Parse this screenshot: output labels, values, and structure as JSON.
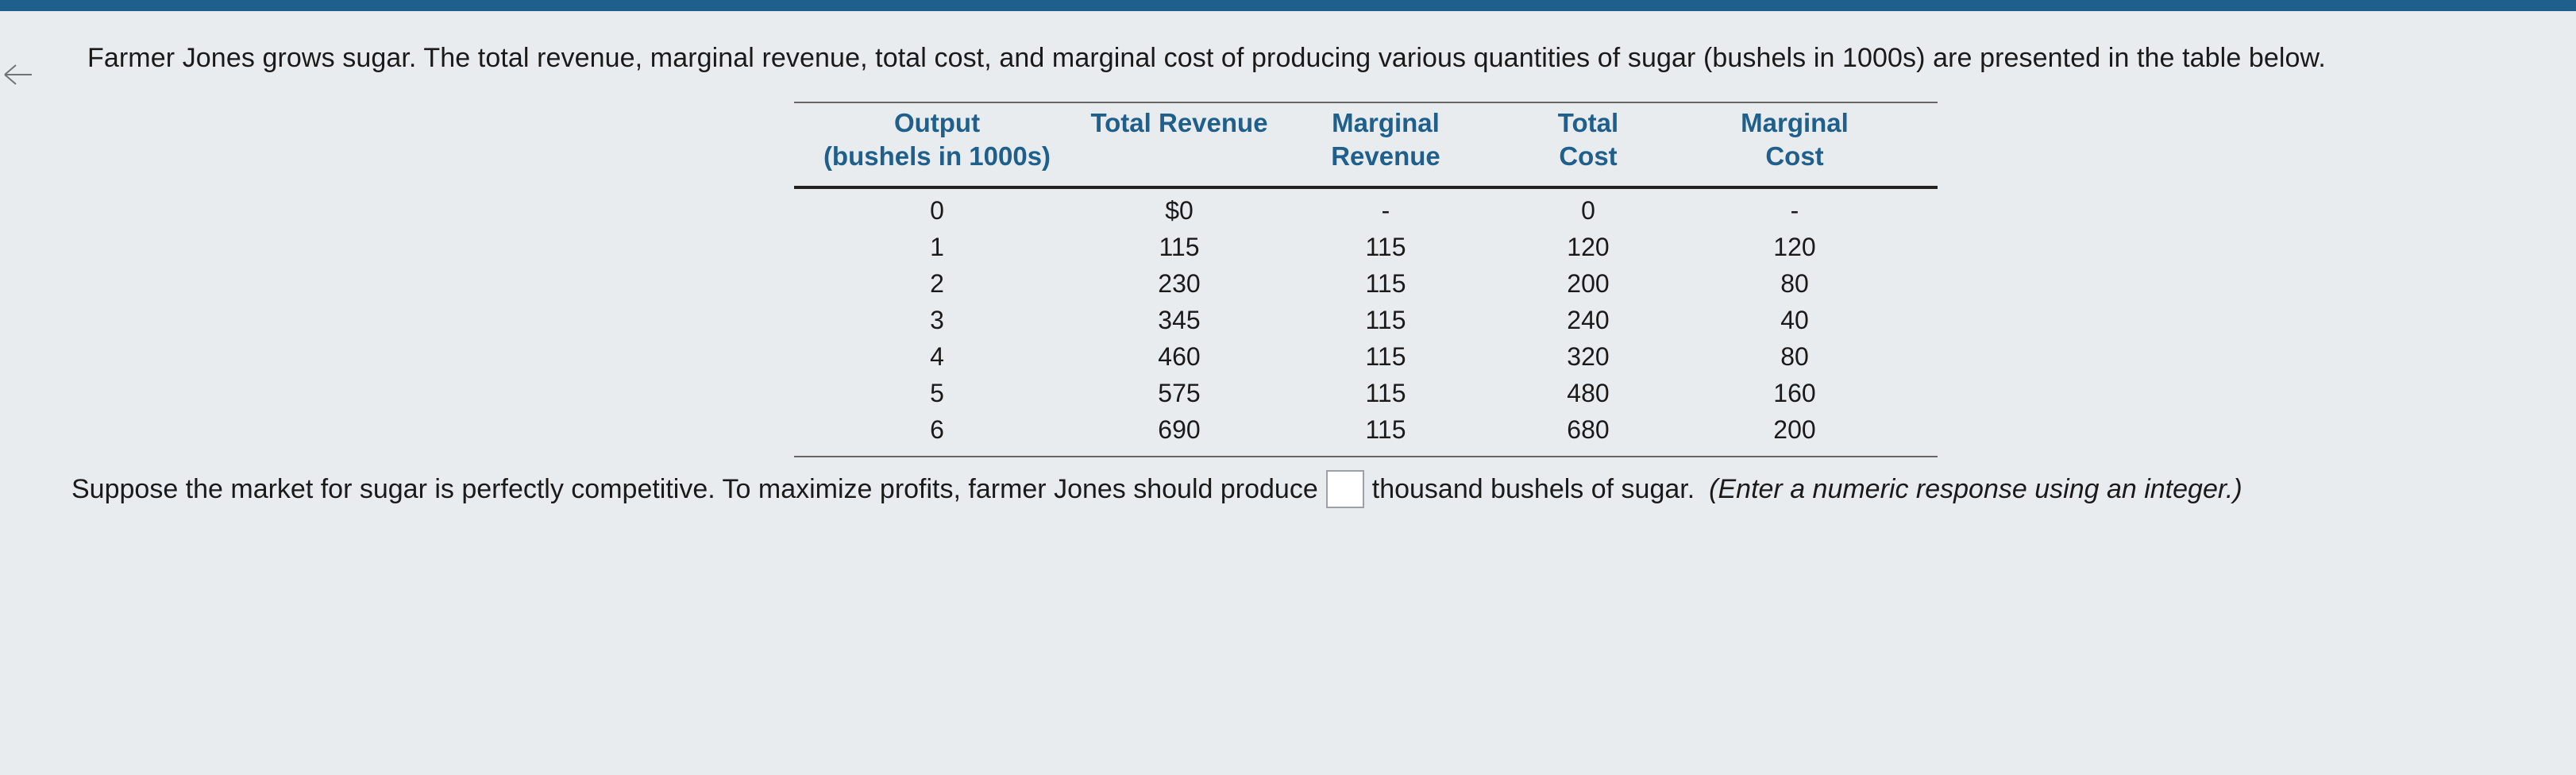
{
  "question": {
    "prompt": "Farmer Jones grows sugar. The total revenue, marginal revenue, total cost, and marginal cost of producing various quantities of sugar (bushels in 1000s) are presented in the table below.",
    "followup_before": "Suppose the market for sugar is perfectly competitive. To maximize profits, farmer Jones should produce",
    "followup_after": "thousand bushels of sugar.",
    "hint": "(Enter a numeric response using an integer.)",
    "answer_value": ""
  },
  "table": {
    "headers": [
      "Output\n(bushels in 1000s)",
      "Total Revenue",
      "Marginal\nRevenue",
      "Total\nCost",
      "Marginal\nCost"
    ],
    "rows": [
      [
        "0",
        "$0",
        "-",
        "0",
        "-"
      ],
      [
        "1",
        "115",
        "115",
        "120",
        "120"
      ],
      [
        "2",
        "230",
        "115",
        "200",
        "80"
      ],
      [
        "3",
        "345",
        "115",
        "240",
        "40"
      ],
      [
        "4",
        "460",
        "115",
        "320",
        "80"
      ],
      [
        "5",
        "575",
        "115",
        "480",
        "160"
      ],
      [
        "6",
        "690",
        "115",
        "680",
        "200"
      ]
    ]
  },
  "colors": {
    "header_text": "#1f5f8b",
    "top_bar": "#1f5f8b",
    "background": "#e9ecef"
  },
  "icons": {
    "back": "arrow-left-icon"
  }
}
